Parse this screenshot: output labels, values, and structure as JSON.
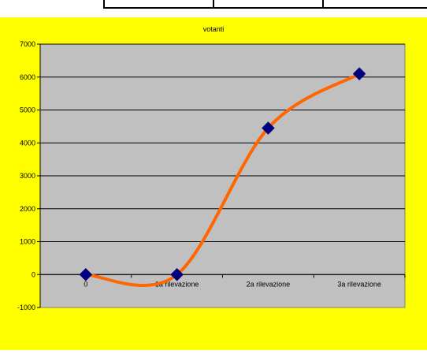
{
  "chart_data": {
    "type": "line",
    "title": "votanti",
    "xlabel": "",
    "ylabel": "",
    "categories": [
      "0",
      "1a rilevazione",
      "2a rilevazione",
      "3a rilevazione"
    ],
    "series": [
      {
        "values": [
          0,
          0,
          4450,
          6100
        ]
      }
    ],
    "ylim": [
      -1000,
      7000
    ],
    "yticks": [
      "-1000",
      "0",
      "1000",
      "2000",
      "3000",
      "4000",
      "5000",
      "6000",
      "7000"
    ],
    "smooth": true,
    "grid": true,
    "legend": "none"
  },
  "colors": {
    "background": "#FFFF00",
    "plot_area": "#C0C0C0",
    "line": "#FF6600",
    "marker": "#000080",
    "gridline": "#000000"
  }
}
